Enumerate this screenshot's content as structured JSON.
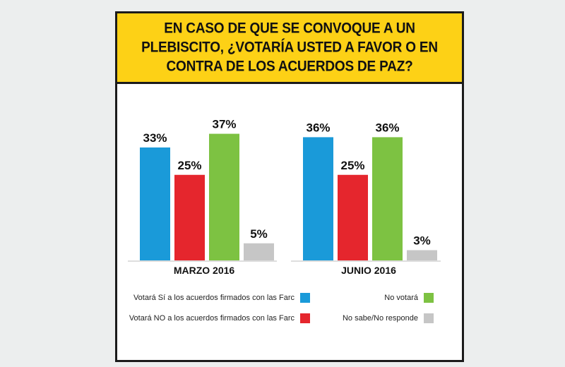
{
  "title": "EN CASO DE QUE SE CONVOQUE A UN PLEBISCITO, ¿VOTARÍA USTED A FAVOR O EN CONTRA DE LOS ACUERDOS DE PAZ?",
  "colors": {
    "si": "#1a9ad9",
    "no": "#e5262d",
    "no_votara": "#7dc242",
    "ns_nr": "#c6c6c6",
    "banner": "#fdd116"
  },
  "legend": {
    "si": "Votará Sí a los acuerdos firmados con las Farc",
    "no": "Votará NO a los acuerdos firmados con las Farc",
    "no_votara": "No votará",
    "ns_nr": "No sabe/No responde"
  },
  "chart_data": {
    "type": "bar",
    "title": "EN CASO DE QUE SE CONVOQUE A UN PLEBISCITO, ¿VOTARÍA USTED A FAVOR O EN CONTRA DE LOS ACUERDOS DE PAZ?",
    "categories": [
      "MARZO 2016",
      "JUNIO 2016"
    ],
    "series": [
      {
        "name": "Votará Sí a los acuerdos firmados con las Farc",
        "key": "si",
        "values": [
          33,
          36
        ]
      },
      {
        "name": "Votará NO a los acuerdos firmados con las Farc",
        "key": "no",
        "values": [
          25,
          25
        ]
      },
      {
        "name": "No votará",
        "key": "no_votara",
        "values": [
          37,
          36
        ]
      },
      {
        "name": "No sabe/No responde",
        "key": "ns_nr",
        "values": [
          5,
          3
        ]
      }
    ],
    "value_suffix": "%",
    "ylim": [
      0,
      40
    ],
    "xlabel": "",
    "ylabel": ""
  }
}
